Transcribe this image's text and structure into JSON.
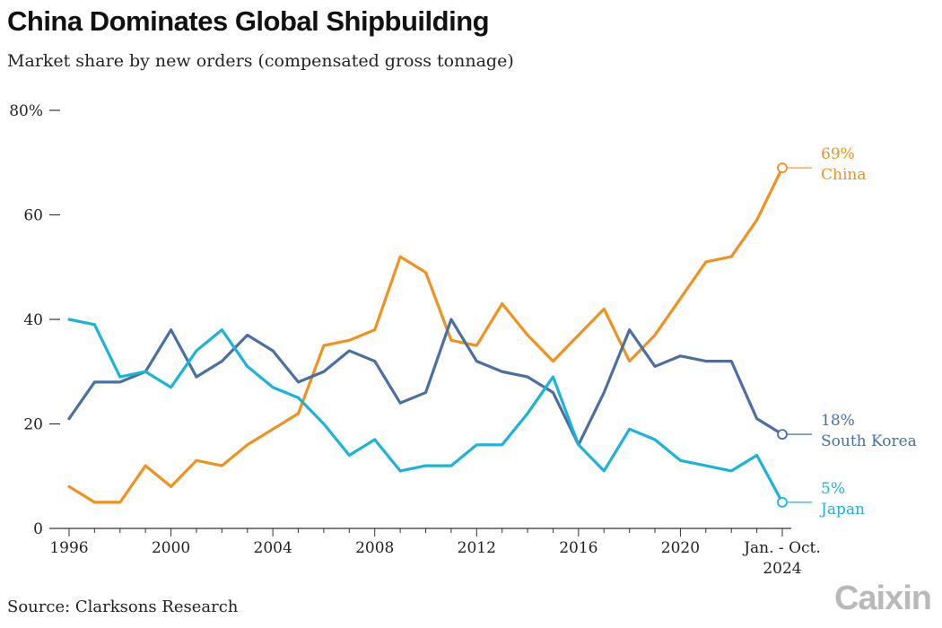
{
  "title": "China Dominates Global Shipbuilding",
  "subtitle": "Market share by new orders (compensated gross tonnage)",
  "source": "Source: Clarksons Research",
  "logo": "Caixin",
  "chart_data": {
    "type": "line",
    "title": "China Dominates Global Shipbuilding",
    "subtitle": "Market share by new orders (compensated gross tonnage)",
    "xlabel": "",
    "ylabel": "",
    "x": [
      1996,
      1997,
      1998,
      1999,
      2000,
      2001,
      2002,
      2003,
      2004,
      2005,
      2006,
      2007,
      2008,
      2009,
      2010,
      2011,
      2012,
      2013,
      2014,
      2015,
      2016,
      2017,
      2018,
      2019,
      2020,
      2021,
      2022,
      2023,
      2024
    ],
    "xlim": [
      1996,
      2024
    ],
    "ylim": [
      0,
      80
    ],
    "yticks": [
      0,
      20,
      40,
      60,
      80
    ],
    "ytick_labels": [
      "0",
      "20",
      "40",
      "60",
      "80%"
    ],
    "xticks": [
      1996,
      2000,
      2004,
      2008,
      2012,
      2016,
      2020,
      2024
    ],
    "xtick_labels": [
      "1996",
      "2000",
      "2004",
      "2008",
      "2012",
      "2016",
      "2020",
      "Jan. - Oct."
    ],
    "xtick_last_sub": "2024",
    "grid": false,
    "series": [
      {
        "name": "China",
        "color": "#F0921E",
        "end_label": "69%",
        "values": [
          8,
          5,
          5,
          12,
          8,
          13,
          12,
          16,
          19,
          22,
          35,
          36,
          38,
          52,
          49,
          36,
          35,
          43,
          37,
          32,
          37,
          42,
          32,
          37,
          44,
          51,
          52,
          59,
          69
        ]
      },
      {
        "name": "South Korea",
        "color": "#4A6FA0",
        "end_label": "18%",
        "values": [
          21,
          28,
          28,
          30,
          38,
          29,
          32,
          37,
          34,
          28,
          30,
          34,
          32,
          24,
          26,
          40,
          32,
          30,
          29,
          26,
          16,
          26,
          38,
          31,
          33,
          32,
          32,
          21,
          18
        ]
      },
      {
        "name": "Japan",
        "color": "#1AB4D6",
        "end_label": "5%",
        "values": [
          40,
          39,
          29,
          30,
          27,
          34,
          38,
          31,
          27,
          25,
          20,
          14,
          17,
          11,
          12,
          12,
          16,
          16,
          22,
          29,
          16,
          11,
          19,
          17,
          13,
          12,
          11,
          14,
          5
        ]
      }
    ]
  }
}
